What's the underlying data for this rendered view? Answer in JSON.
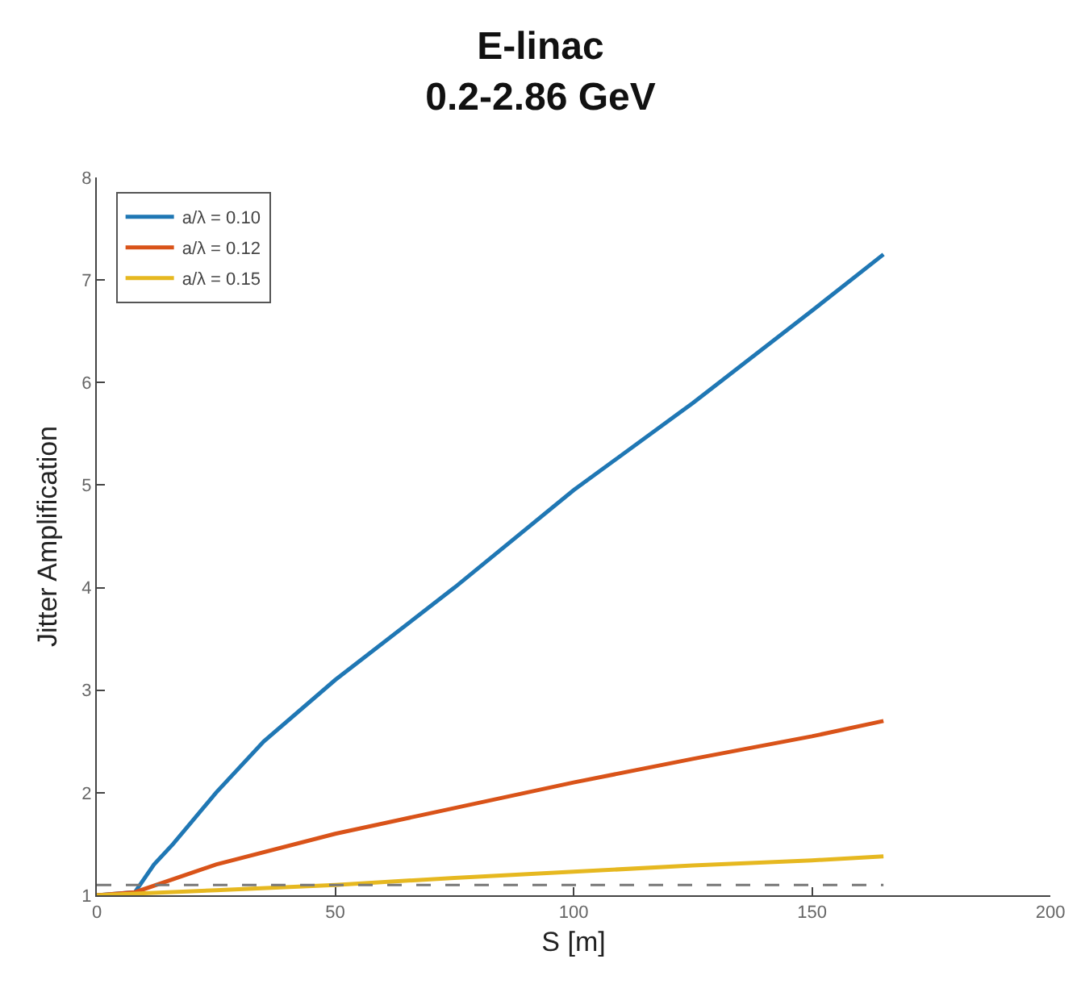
{
  "chart_data": {
    "type": "line",
    "title": "E-linac\n0.2-2.86 GeV",
    "xlabel": "S [m]",
    "ylabel": "Jitter Amplification",
    "xlim": [
      0,
      200
    ],
    "xticks": [
      0,
      50,
      100,
      150,
      200
    ],
    "ylim": [
      1,
      8
    ],
    "yticks": [
      1,
      2,
      3,
      4,
      5,
      6,
      7,
      8
    ],
    "grid": false,
    "legend": "top left",
    "marker": "none",
    "series": [
      {
        "name": "a/λ = 0.10",
        "color": "#1f77b4",
        "x": [
          0,
          8,
          12,
          16,
          25,
          35,
          50,
          75,
          100,
          125,
          150,
          165
        ],
        "values": [
          1,
          1.03,
          1.3,
          1.5,
          2.0,
          2.5,
          3.1,
          4.0,
          4.95,
          5.8,
          6.7,
          7.25
        ]
      },
      {
        "name": "a/λ = 0.12",
        "color": "#d95319",
        "x": [
          0,
          8,
          25,
          50,
          75,
          100,
          125,
          150,
          165
        ],
        "values": [
          1,
          1.03,
          1.3,
          1.6,
          1.85,
          2.1,
          2.33,
          2.55,
          2.7
        ]
      },
      {
        "name": "a/λ = 0.15",
        "color": "#e6b820",
        "x": [
          0,
          25,
          50,
          75,
          100,
          125,
          150,
          165
        ],
        "values": [
          1,
          1.05,
          1.1,
          1.17,
          1.23,
          1.29,
          1.34,
          1.38
        ]
      },
      {
        "color": "#777777",
        "line_style": "dashed",
        "x": [
          0,
          165
        ],
        "values": [
          1.1,
          1.1
        ]
      }
    ]
  }
}
